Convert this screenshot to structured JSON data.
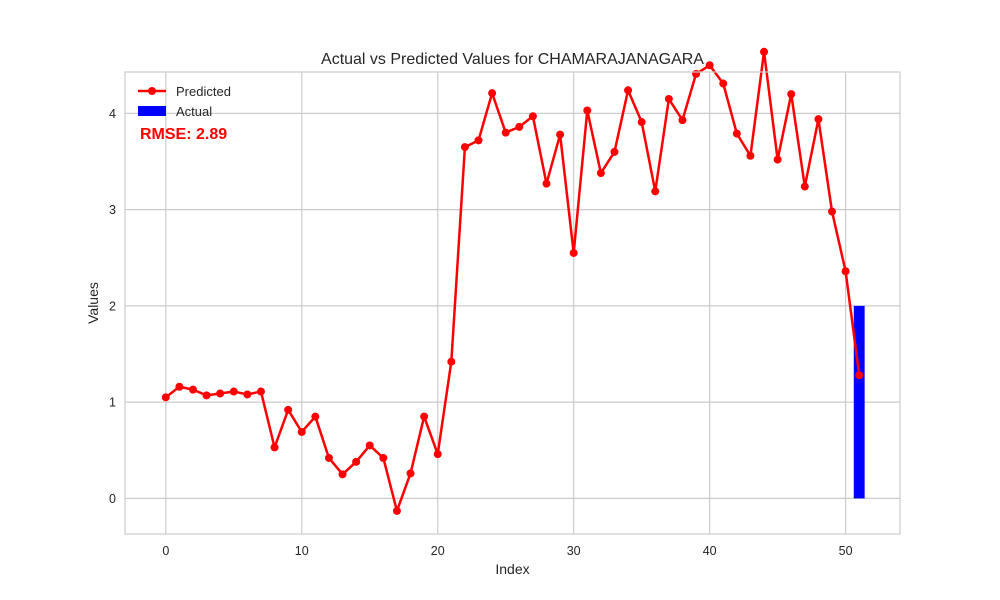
{
  "chart_data": {
    "type": "line",
    "title": "Actual vs Predicted Values for CHAMARAJANAGARA",
    "xlabel": "Index",
    "ylabel": "Values",
    "xlim": [
      -3,
      54
    ],
    "ylim": [
      -0.37,
      4.43
    ],
    "xticks": [
      0,
      10,
      20,
      30,
      40,
      50
    ],
    "yticks": [
      0,
      1,
      2,
      3,
      4
    ],
    "xtick_labels": [
      "0",
      "10",
      "20",
      "30",
      "40",
      "50"
    ],
    "ytick_labels": [
      "0",
      "1",
      "2",
      "3",
      "4"
    ],
    "grid": true,
    "legend_position": "top-left",
    "series": [
      {
        "name": "Predicted",
        "kind": "line-with-markers",
        "color": "#ff0000",
        "x": [
          0,
          1,
          2,
          3,
          4,
          5,
          6,
          7,
          8,
          9,
          10,
          11,
          12,
          13,
          14,
          15,
          16,
          17,
          18,
          19,
          20,
          21,
          22,
          23,
          24,
          25,
          26,
          27,
          28,
          29,
          30,
          31,
          32,
          33,
          34,
          35,
          36,
          37,
          38,
          39,
          40,
          41,
          42,
          43,
          44,
          45,
          46,
          47,
          48,
          49,
          50,
          51
        ],
        "values": [
          1.05,
          1.16,
          1.13,
          1.07,
          1.09,
          1.11,
          1.08,
          1.11,
          0.53,
          0.92,
          0.69,
          0.85,
          0.42,
          0.25,
          0.38,
          0.55,
          0.42,
          -0.13,
          0.26,
          0.85,
          0.46,
          1.42,
          3.65,
          3.72,
          4.21,
          3.8,
          3.86,
          3.97,
          3.27,
          3.78,
          2.55,
          4.03,
          3.38,
          3.6,
          4.24,
          3.91,
          3.19,
          4.15,
          3.93,
          4.41,
          4.5,
          4.31,
          3.79,
          3.56,
          4.64,
          3.52,
          4.2,
          3.24,
          3.94,
          2.98,
          2.36,
          1.28
        ]
      },
      {
        "name": "Actual",
        "kind": "bar",
        "color": "#0000ff",
        "x": [
          51
        ],
        "values": [
          2.0
        ],
        "bar_width": 0.8
      }
    ],
    "annotations": [
      {
        "text": "RMSE: 2.89",
        "color": "#ff0000",
        "position": "top-left"
      }
    ]
  }
}
